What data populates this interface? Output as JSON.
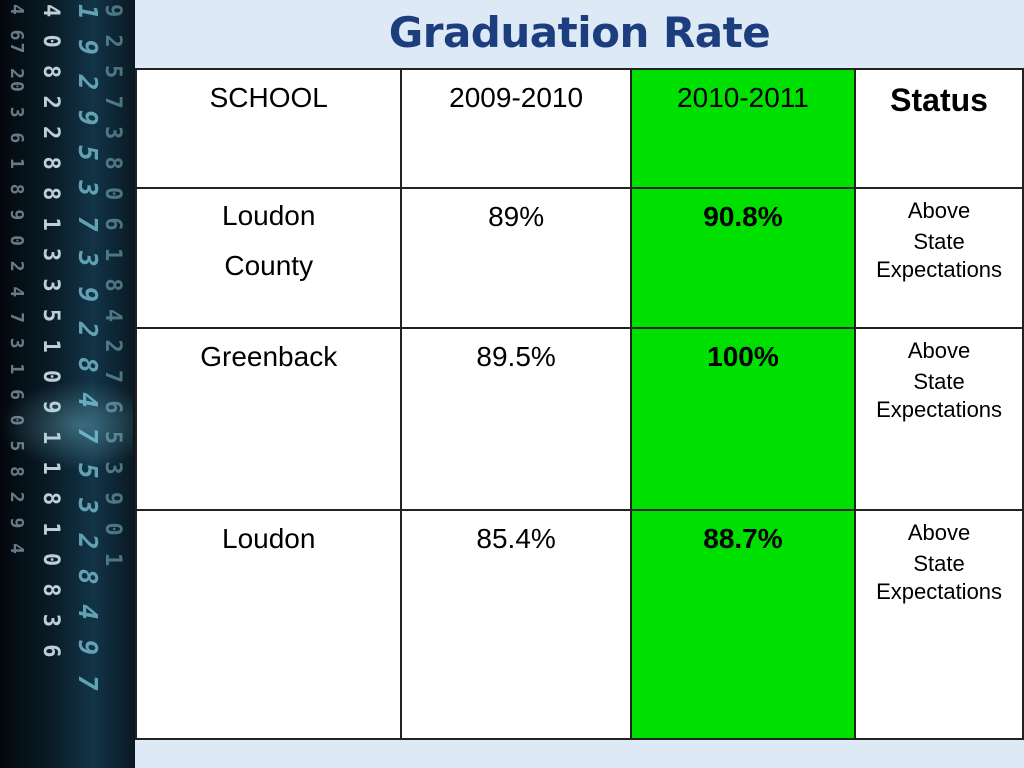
{
  "title": "Graduation Rate",
  "table": {
    "headers": [
      "SCHOOL",
      "2009-2010",
      "2010-2011",
      "Status"
    ],
    "rows": [
      {
        "school": "Loudon County",
        "y2009_2010": "89%",
        "y2010_2011": "90.8%",
        "status_line1": "Above",
        "status_line2": "State",
        "status_line3": "Expectations"
      },
      {
        "school": "Greenback",
        "y2009_2010": "89.5%",
        "y2010_2011": "100%",
        "status_line1": "Above",
        "status_line2": "State",
        "status_line3": "Expectations"
      },
      {
        "school": "Loudon",
        "y2009_2010": "85.4%",
        "y2010_2011": "88.7%",
        "status_line1": "Above",
        "status_line2": "State",
        "status_line3": "Expectations"
      }
    ]
  },
  "colors": {
    "title": "#1c3d7e",
    "highlight_column": "#00e000",
    "background": "#dde9f5"
  }
}
